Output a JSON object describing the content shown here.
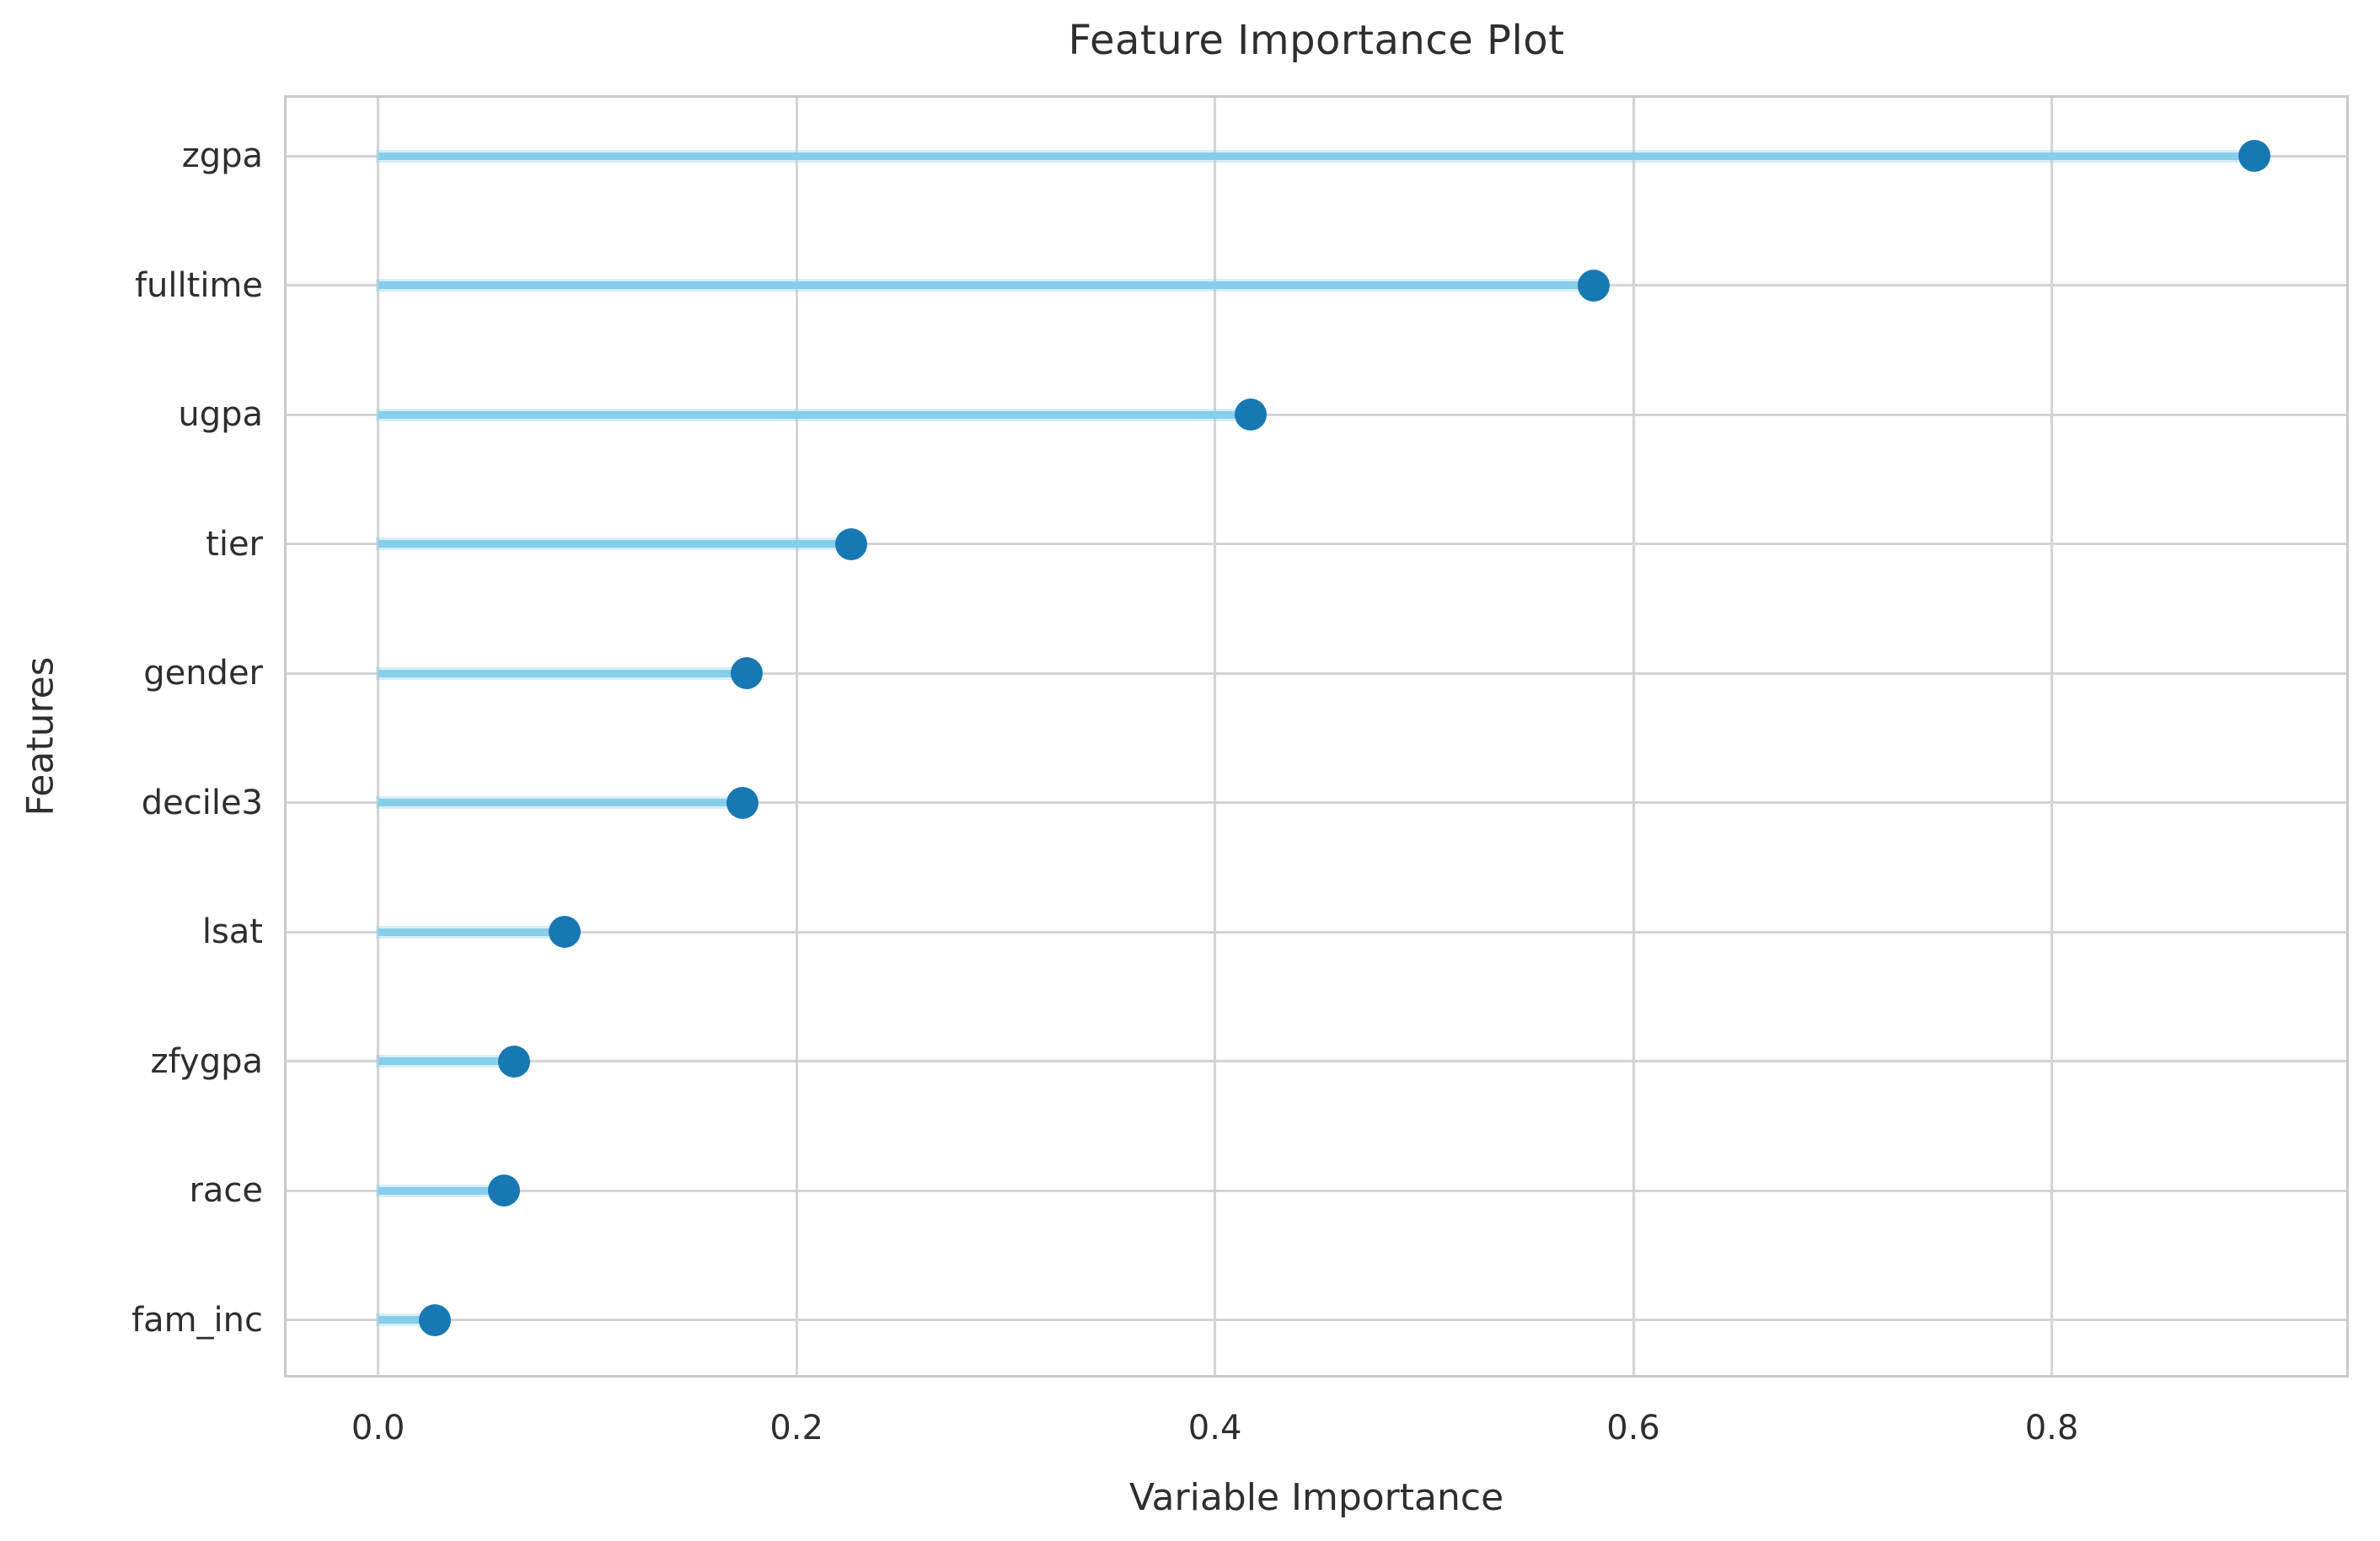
{
  "chart_data": {
    "type": "scatter",
    "variant": "horizontal-lollipop",
    "title": "Feature Importance Plot",
    "xlabel": "Variable Importance",
    "ylabel": "Features",
    "categories": [
      "zgpa",
      "fulltime",
      "ugpa",
      "tier",
      "gender",
      "decile3",
      "lsat",
      "zfygpa",
      "race",
      "fam_inc"
    ],
    "values": [
      0.897,
      0.581,
      0.417,
      0.226,
      0.176,
      0.174,
      0.089,
      0.065,
      0.06,
      0.027
    ],
    "stem_start": 0,
    "x_ticks": [
      "0.0",
      "0.2",
      "0.4",
      "0.6",
      "0.8"
    ],
    "x_tick_values": [
      0.0,
      0.2,
      0.4,
      0.6,
      0.8
    ],
    "xlim": [
      -0.045,
      0.942
    ],
    "grid": true,
    "legend": false,
    "colors": {
      "stem": "#87ceeb",
      "dot": "#1878b4",
      "grid": "#d4d4d4",
      "spine": "#c9c9c9",
      "text": "#2e2e2e",
      "background": "#ffffff"
    }
  }
}
